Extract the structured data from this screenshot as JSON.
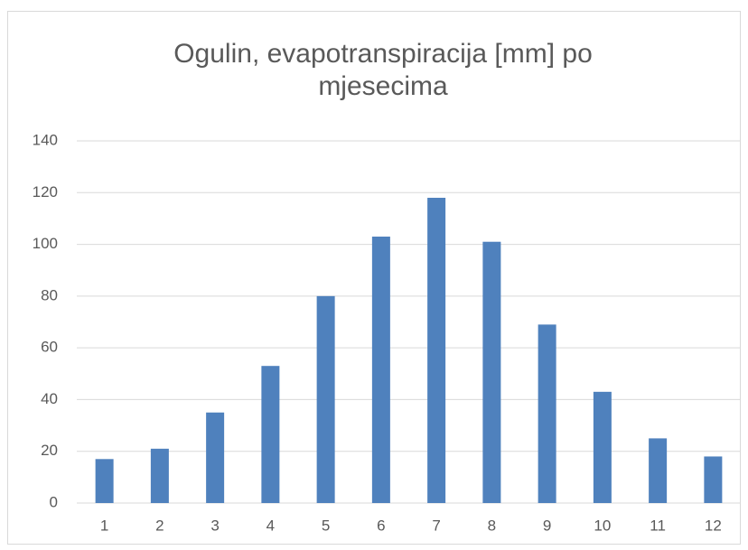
{
  "chart_data": {
    "type": "bar",
    "title": "Ogulin, evapotranspiracija [mm] po mjesecima",
    "categories": [
      "1",
      "2",
      "3",
      "4",
      "5",
      "6",
      "7",
      "8",
      "9",
      "10",
      "11",
      "12"
    ],
    "values": [
      17,
      21,
      35,
      53,
      80,
      103,
      118,
      101,
      69,
      43,
      25,
      18
    ],
    "color": "#4f81bd",
    "ylim": [
      0,
      140
    ],
    "yticks": [
      0,
      20,
      40,
      60,
      80,
      100,
      120,
      140
    ],
    "grid": true
  }
}
